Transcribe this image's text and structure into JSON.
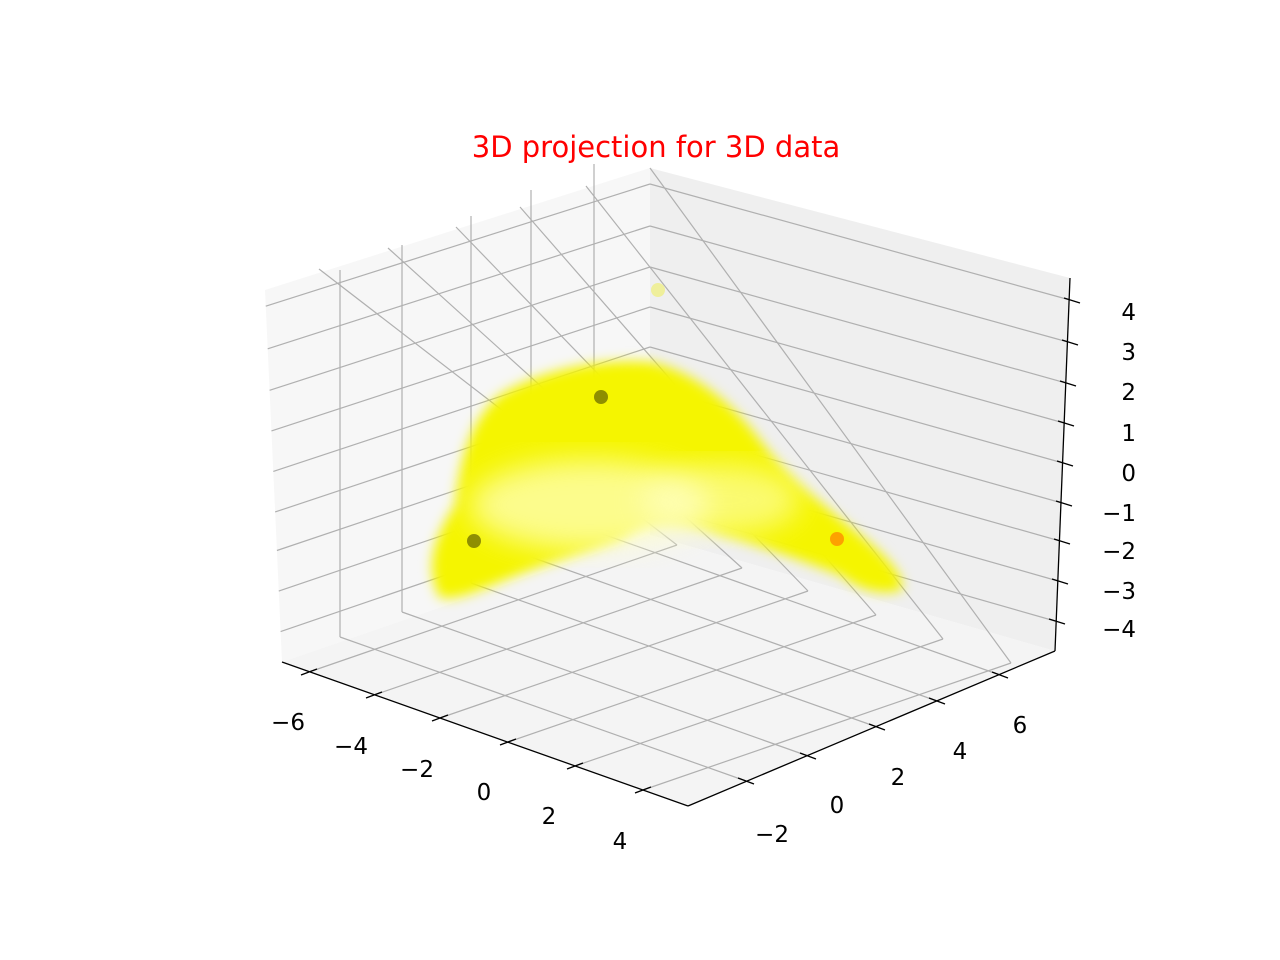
{
  "chart_data": {
    "type": "scatter",
    "projection": "3d",
    "title": "3D projection for 3D data",
    "title_color": "#ff0000",
    "x_ticks": [
      "−6",
      "−4",
      "−2",
      "0",
      "2",
      "4"
    ],
    "y_ticks": [
      "−2",
      "0",
      "2",
      "4",
      "6"
    ],
    "z_ticks": [
      "−4",
      "−3",
      "−2",
      "−1",
      "0",
      "1",
      "2",
      "3",
      "4"
    ],
    "grid": true,
    "point_cloud": {
      "description_color": "#ffff00",
      "shape": "arch"
    },
    "highlight_points": [
      {
        "color": "#6b6b00",
        "alpha": 0.7
      },
      {
        "color": "#6b6b00",
        "alpha": 0.7
      },
      {
        "color": "#ff8c00",
        "alpha": 0.8
      },
      {
        "color": "#eeee55",
        "alpha": 0.5
      }
    ]
  }
}
